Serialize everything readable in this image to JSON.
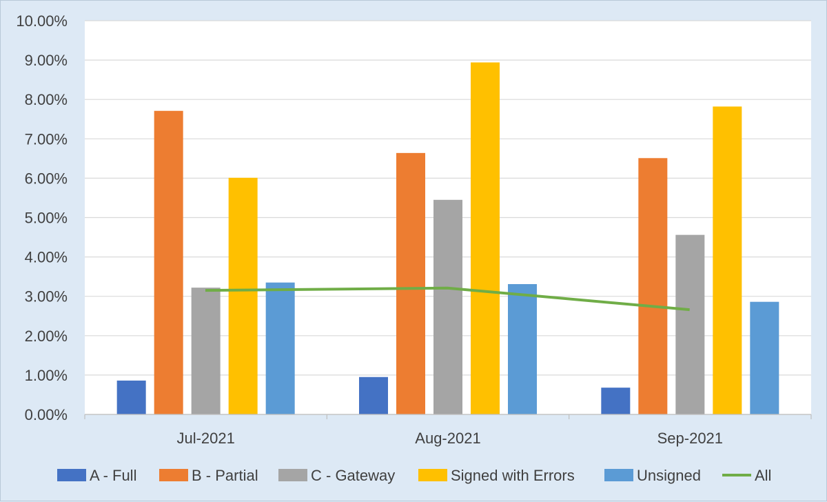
{
  "chart_data": {
    "type": "bar",
    "categories": [
      "Jul-2021",
      "Aug-2021",
      "Sep-2021"
    ],
    "series": [
      {
        "name": "A - Full",
        "type": "bar",
        "color": "#4472c4",
        "values": [
          0.86,
          0.95,
          0.68
        ]
      },
      {
        "name": "B - Partial",
        "type": "bar",
        "color": "#ed7d31",
        "values": [
          7.71,
          6.64,
          6.51
        ]
      },
      {
        "name": "C - Gateway",
        "type": "bar",
        "color": "#a5a5a5",
        "values": [
          3.22,
          5.45,
          4.56
        ]
      },
      {
        "name": "Signed with Errors",
        "type": "bar",
        "color": "#ffc000",
        "values": [
          6.01,
          8.94,
          7.82
        ]
      },
      {
        "name": "Unsigned",
        "type": "bar",
        "color": "#5b9bd5",
        "values": [
          3.35,
          3.31,
          2.86
        ]
      },
      {
        "name": "All",
        "type": "line",
        "color": "#70ad47",
        "values": [
          3.15,
          3.21,
          2.66
        ]
      }
    ],
    "yticks": [
      "0.00%",
      "1.00%",
      "2.00%",
      "3.00%",
      "4.00%",
      "5.00%",
      "6.00%",
      "7.00%",
      "8.00%",
      "9.00%",
      "10.00%"
    ],
    "ylim": [
      0,
      10
    ],
    "y_unit": "%",
    "grid": true,
    "legend_position": "bottom",
    "title": "",
    "xlabel": "",
    "ylabel": ""
  }
}
